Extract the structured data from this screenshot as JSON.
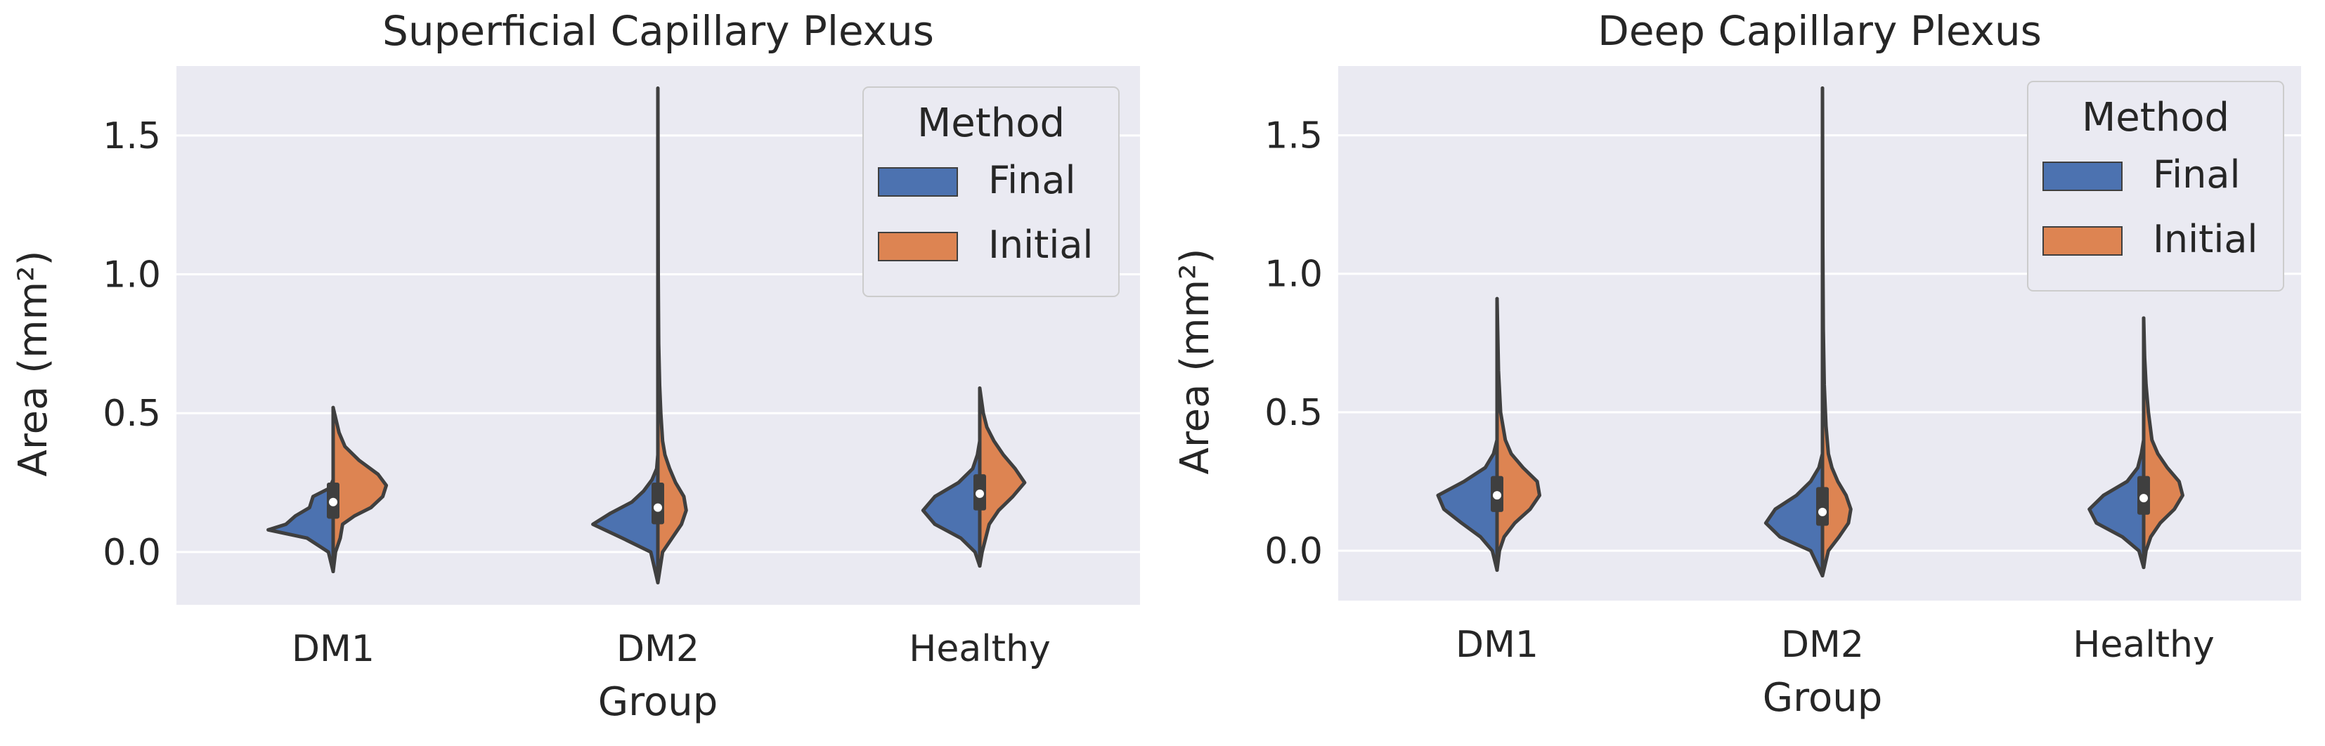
{
  "chart_data": [
    {
      "type": "violin",
      "split": true,
      "title": "Superficial Capillary Plexus",
      "xlabel": "Group",
      "ylabel": "Area (mm²)",
      "categories": [
        "DM1",
        "DM2",
        "Healthy"
      ],
      "ylim": [
        -0.19,
        1.75
      ],
      "yticks": [
        0.0,
        0.5,
        1.0,
        1.5
      ],
      "ytick_labels": [
        "0.0",
        "0.5",
        "1.0",
        "1.5"
      ],
      "grid": true,
      "legend": {
        "title": "Method",
        "position": "top-right",
        "entries": [
          "Final",
          "Initial"
        ]
      },
      "series": [
        {
          "name": "Final",
          "color": "#4c72b0"
        },
        {
          "name": "Initial",
          "color": "#dd8452"
        }
      ],
      "groups": [
        {
          "category": "DM1",
          "min": -0.07,
          "max": 0.52,
          "median": 0.18,
          "q1": 0.12,
          "q3": 0.25,
          "final_profile": [
            [
              -0.07,
              0
            ],
            [
              0.0,
              0.04
            ],
            [
              0.05,
              0.22
            ],
            [
              0.08,
              0.55
            ],
            [
              0.1,
              0.4
            ],
            [
              0.13,
              0.32
            ],
            [
              0.16,
              0.2
            ],
            [
              0.2,
              0.17
            ],
            [
              0.23,
              0.03
            ],
            [
              0.26,
              0
            ],
            [
              0.3,
              0
            ],
            [
              0.52,
              0
            ]
          ],
          "initial_profile": [
            [
              -0.07,
              0
            ],
            [
              0.0,
              0.02
            ],
            [
              0.05,
              0.06
            ],
            [
              0.1,
              0.08
            ],
            [
              0.13,
              0.18
            ],
            [
              0.16,
              0.32
            ],
            [
              0.2,
              0.42
            ],
            [
              0.24,
              0.45
            ],
            [
              0.28,
              0.38
            ],
            [
              0.33,
              0.22
            ],
            [
              0.38,
              0.1
            ],
            [
              0.43,
              0.05
            ],
            [
              0.52,
              0
            ]
          ]
        },
        {
          "category": "DM2",
          "min": -0.11,
          "max": 1.67,
          "median": 0.16,
          "q1": 0.1,
          "q3": 0.25,
          "final_profile": [
            [
              -0.11,
              0
            ],
            [
              0.0,
              0.06
            ],
            [
              0.05,
              0.3
            ],
            [
              0.1,
              0.55
            ],
            [
              0.14,
              0.4
            ],
            [
              0.18,
              0.22
            ],
            [
              0.22,
              0.12
            ],
            [
              0.26,
              0.05
            ],
            [
              0.3,
              0.01
            ],
            [
              0.35,
              0
            ],
            [
              1.67,
              0
            ]
          ],
          "initial_profile": [
            [
              -0.11,
              0
            ],
            [
              0.0,
              0.04
            ],
            [
              0.05,
              0.12
            ],
            [
              0.1,
              0.2
            ],
            [
              0.15,
              0.24
            ],
            [
              0.2,
              0.22
            ],
            [
              0.25,
              0.15
            ],
            [
              0.3,
              0.1
            ],
            [
              0.35,
              0.06
            ],
            [
              0.4,
              0.04
            ],
            [
              0.5,
              0.025
            ],
            [
              0.6,
              0.015
            ],
            [
              0.75,
              0.007
            ],
            [
              1.0,
              0.003
            ],
            [
              1.67,
              0
            ]
          ]
        },
        {
          "category": "Healthy",
          "min": -0.05,
          "max": 0.59,
          "median": 0.21,
          "q1": 0.15,
          "q3": 0.28,
          "final_profile": [
            [
              -0.05,
              0
            ],
            [
              0.0,
              0.04
            ],
            [
              0.05,
              0.16
            ],
            [
              0.1,
              0.38
            ],
            [
              0.15,
              0.48
            ],
            [
              0.2,
              0.38
            ],
            [
              0.25,
              0.18
            ],
            [
              0.3,
              0.06
            ],
            [
              0.35,
              0.02
            ],
            [
              0.4,
              0
            ],
            [
              0.59,
              0
            ]
          ],
          "initial_profile": [
            [
              -0.05,
              0
            ],
            [
              0.0,
              0.02
            ],
            [
              0.05,
              0.05
            ],
            [
              0.1,
              0.08
            ],
            [
              0.15,
              0.16
            ],
            [
              0.2,
              0.28
            ],
            [
              0.25,
              0.38
            ],
            [
              0.3,
              0.3
            ],
            [
              0.35,
              0.2
            ],
            [
              0.4,
              0.12
            ],
            [
              0.45,
              0.06
            ],
            [
              0.5,
              0.03
            ],
            [
              0.59,
              0
            ]
          ]
        }
      ]
    },
    {
      "type": "violin",
      "split": true,
      "title": "Deep Capillary Plexus",
      "xlabel": "Group",
      "ylabel": "Area (mm²)",
      "categories": [
        "DM1",
        "DM2",
        "Healthy"
      ],
      "ylim": [
        -0.18,
        1.75
      ],
      "yticks": [
        0.0,
        0.5,
        1.0,
        1.5
      ],
      "ytick_labels": [
        "0.0",
        "0.5",
        "1.0",
        "1.5"
      ],
      "grid": true,
      "legend": {
        "title": "Method",
        "position": "top-right",
        "entries": [
          "Final",
          "Initial"
        ]
      },
      "series": [
        {
          "name": "Final",
          "color": "#4c72b0"
        },
        {
          "name": "Initial",
          "color": "#dd8452"
        }
      ],
      "groups": [
        {
          "category": "DM1",
          "min": -0.07,
          "max": 0.91,
          "median": 0.2,
          "q1": 0.14,
          "q3": 0.27,
          "final_profile": [
            [
              -0.07,
              0
            ],
            [
              0.0,
              0.04
            ],
            [
              0.05,
              0.14
            ],
            [
              0.1,
              0.3
            ],
            [
              0.15,
              0.45
            ],
            [
              0.2,
              0.5
            ],
            [
              0.25,
              0.28
            ],
            [
              0.3,
              0.1
            ],
            [
              0.35,
              0.03
            ],
            [
              0.4,
              0
            ],
            [
              0.91,
              0
            ]
          ],
          "initial_profile": [
            [
              -0.07,
              0
            ],
            [
              0.0,
              0.02
            ],
            [
              0.05,
              0.06
            ],
            [
              0.1,
              0.15
            ],
            [
              0.15,
              0.28
            ],
            [
              0.2,
              0.36
            ],
            [
              0.25,
              0.34
            ],
            [
              0.3,
              0.22
            ],
            [
              0.35,
              0.12
            ],
            [
              0.4,
              0.07
            ],
            [
              0.5,
              0.03
            ],
            [
              0.65,
              0.012
            ],
            [
              0.8,
              0.005
            ],
            [
              0.91,
              0
            ]
          ]
        },
        {
          "category": "DM2",
          "min": -0.09,
          "max": 1.67,
          "median": 0.14,
          "q1": 0.09,
          "q3": 0.23,
          "final_profile": [
            [
              -0.09,
              0
            ],
            [
              0.0,
              0.1
            ],
            [
              0.05,
              0.36
            ],
            [
              0.1,
              0.48
            ],
            [
              0.15,
              0.4
            ],
            [
              0.2,
              0.22
            ],
            [
              0.25,
              0.1
            ],
            [
              0.3,
              0.03
            ],
            [
              0.35,
              0
            ],
            [
              1.67,
              0
            ]
          ],
          "initial_profile": [
            [
              -0.09,
              0
            ],
            [
              0.0,
              0.05
            ],
            [
              0.05,
              0.14
            ],
            [
              0.1,
              0.22
            ],
            [
              0.15,
              0.24
            ],
            [
              0.2,
              0.2
            ],
            [
              0.25,
              0.13
            ],
            [
              0.3,
              0.08
            ],
            [
              0.35,
              0.05
            ],
            [
              0.45,
              0.03
            ],
            [
              0.6,
              0.015
            ],
            [
              0.8,
              0.007
            ],
            [
              1.1,
              0.003
            ],
            [
              1.67,
              0
            ]
          ]
        },
        {
          "category": "Healthy",
          "min": -0.06,
          "max": 0.84,
          "median": 0.19,
          "q1": 0.13,
          "q3": 0.27,
          "final_profile": [
            [
              -0.06,
              0
            ],
            [
              0.0,
              0.04
            ],
            [
              0.05,
              0.18
            ],
            [
              0.1,
              0.4
            ],
            [
              0.15,
              0.46
            ],
            [
              0.2,
              0.34
            ],
            [
              0.25,
              0.14
            ],
            [
              0.3,
              0.05
            ],
            [
              0.35,
              0.02
            ],
            [
              0.4,
              0
            ],
            [
              0.84,
              0
            ]
          ],
          "initial_profile": [
            [
              -0.06,
              0
            ],
            [
              0.0,
              0.02
            ],
            [
              0.05,
              0.06
            ],
            [
              0.1,
              0.14
            ],
            [
              0.15,
              0.26
            ],
            [
              0.2,
              0.33
            ],
            [
              0.25,
              0.3
            ],
            [
              0.3,
              0.2
            ],
            [
              0.35,
              0.12
            ],
            [
              0.4,
              0.07
            ],
            [
              0.5,
              0.04
            ],
            [
              0.6,
              0.02
            ],
            [
              0.7,
              0.008
            ],
            [
              0.84,
              0
            ]
          ]
        }
      ]
    }
  ]
}
